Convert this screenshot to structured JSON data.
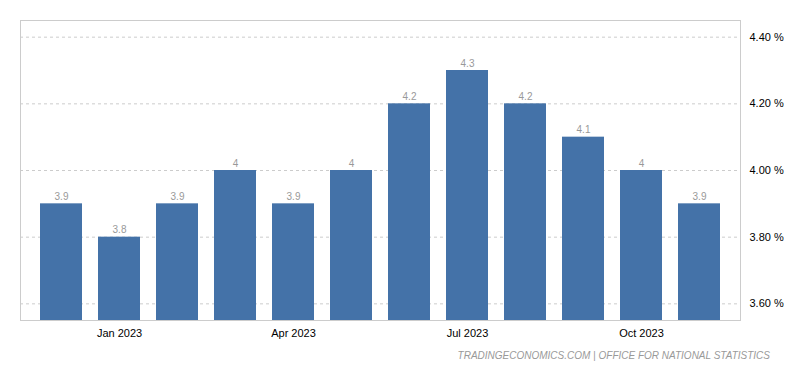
{
  "chart_data": {
    "type": "bar",
    "caption": "TRADINGECONOMICS.COM | OFFICE FOR NATIONAL STATISTICS",
    "categories": [
      null,
      "Jan 2023",
      null,
      null,
      "Apr 2023",
      null,
      null,
      "Jul 2023",
      null,
      null,
      "Oct 2023",
      null
    ],
    "values": [
      3.9,
      3.8,
      3.9,
      4.0,
      3.9,
      4.0,
      4.2,
      4.3,
      4.2,
      4.1,
      4.0,
      3.9
    ],
    "color": "#4472a8",
    "ylim": [
      3.55,
      4.45
    ],
    "yticks": [
      {
        "value": 3.6,
        "label": "3.60 %"
      },
      {
        "value": 3.8,
        "label": "3.80 %"
      },
      {
        "value": 4.0,
        "label": "4.00 %"
      },
      {
        "value": 4.2,
        "label": "4.20 %"
      },
      {
        "value": 4.4,
        "label": "4.40 %"
      }
    ],
    "grid": true,
    "data_labels": true
  }
}
